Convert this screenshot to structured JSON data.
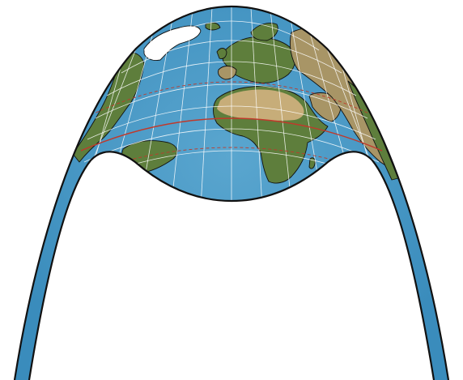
{
  "map": {
    "projection": "conic",
    "graticule": true,
    "layers": [
      "ocean",
      "land",
      "ice",
      "coastlines",
      "gridlines",
      "equator",
      "tropics"
    ],
    "colors": {
      "ocean": "#3a8cbc",
      "ocean_light": "#5aa6cf",
      "land_green": "#5e7e3c",
      "land_desert": "#c7ad79",
      "land_dry": "#a89566",
      "ice": "#ffffff",
      "coastline": "#111111",
      "grid": "#ffffff",
      "equator": "#c0392b",
      "tropic": "#c0392b",
      "border": "#111111"
    }
  }
}
